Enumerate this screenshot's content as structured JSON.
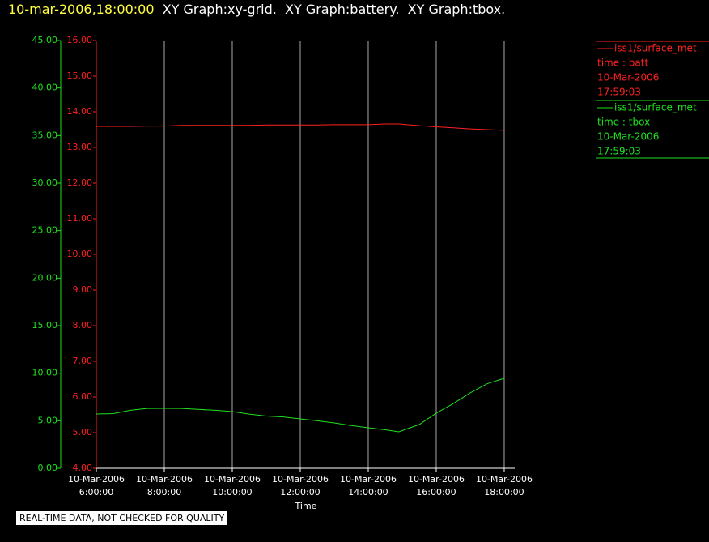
{
  "chart_data": {
    "type": "line",
    "title": "10-mar-2006,18:00:00",
    "subtitle": "XY Graph:xy-grid.  XY Graph:battery.  XY Graph:tbox.",
    "x_label": "Time",
    "footer": "REAL-TIME DATA, NOT CHECKED FOR QUALITY",
    "x": [
      6,
      6.5,
      7,
      7.5,
      8,
      8.5,
      9,
      9.5,
      10,
      10.5,
      11,
      11.5,
      12,
      12.5,
      13,
      13.5,
      14,
      14.5,
      14.9,
      15.5,
      16,
      16.5,
      17,
      17.5,
      18
    ],
    "xlim": [
      6,
      18.31
    ],
    "xticks": [
      {
        "value": 6,
        "label": "10-Mar-2006\n6:00:00"
      },
      {
        "value": 8,
        "label": "10-Mar-2006\n8:00:00"
      },
      {
        "value": 10,
        "label": "10-Mar-2006\n10:00:00"
      },
      {
        "value": 12,
        "label": "10-Mar-2006\n12:00:00"
      },
      {
        "value": 14,
        "label": "10-Mar-2006\n14:00:00"
      },
      {
        "value": 16,
        "label": "10-Mar-2006\n16:00:00"
      },
      {
        "value": 18,
        "label": "10-Mar-2006\n18:00:00"
      }
    ],
    "ylim": [
      0,
      45
    ],
    "yticks": [
      {
        "value": 0,
        "label": "0.00"
      },
      {
        "value": 5,
        "label": "5.00"
      },
      {
        "value": 10,
        "label": "10.00"
      },
      {
        "value": 15,
        "label": "15.00"
      },
      {
        "value": 20,
        "label": "20.00"
      },
      {
        "value": 25,
        "label": "25.00"
      },
      {
        "value": 30,
        "label": "30.00"
      },
      {
        "value": 35,
        "label": "35.00"
      },
      {
        "value": 40,
        "label": "40.00"
      },
      {
        "value": 45,
        "label": "45.00"
      }
    ],
    "y2lim": [
      4,
      16
    ],
    "y2ticks": [
      {
        "value": 4,
        "label": "4.00"
      },
      {
        "value": 5,
        "label": "5.00"
      },
      {
        "value": 6,
        "label": "6.00"
      },
      {
        "value": 7,
        "label": "7.00"
      },
      {
        "value": 8,
        "label": "8.00"
      },
      {
        "value": 9,
        "label": "9.00"
      },
      {
        "value": 10,
        "label": "10.00"
      },
      {
        "value": 11,
        "label": "11.00"
      },
      {
        "value": 12,
        "label": "12.00"
      },
      {
        "value": 13,
        "label": "13.00"
      },
      {
        "value": 14,
        "label": "14.00"
      },
      {
        "value": 15,
        "label": "15.00"
      },
      {
        "value": 16,
        "label": "16.00"
      }
    ],
    "grid": true,
    "series": [
      {
        "name": "iss1/surface_met",
        "legend_lines": [
          "time : batt",
          "10-Mar-2006",
          "17:59:03"
        ],
        "color": "#ff2020",
        "axis": "y2",
        "values": [
          13.59,
          13.59,
          13.59,
          13.6,
          13.6,
          13.62,
          13.62,
          13.62,
          13.62,
          13.62,
          13.63,
          13.63,
          13.63,
          13.63,
          13.64,
          13.64,
          13.64,
          13.66,
          13.66,
          13.61,
          13.58,
          13.55,
          13.52,
          13.5,
          13.48
        ]
      },
      {
        "name": "iss1/surface_met",
        "legend_lines": [
          "time : tbox",
          "10-Mar-2006",
          "17:59:03"
        ],
        "color": "#20e020",
        "values": [
          5.71,
          5.75,
          6.1,
          6.3,
          6.31,
          6.3,
          6.2,
          6.1,
          5.97,
          5.7,
          5.5,
          5.4,
          5.2,
          5.0,
          4.77,
          4.5,
          4.26,
          4.05,
          3.84,
          4.6,
          5.8,
          6.8,
          7.93,
          8.9,
          9.46
        ]
      }
    ]
  }
}
